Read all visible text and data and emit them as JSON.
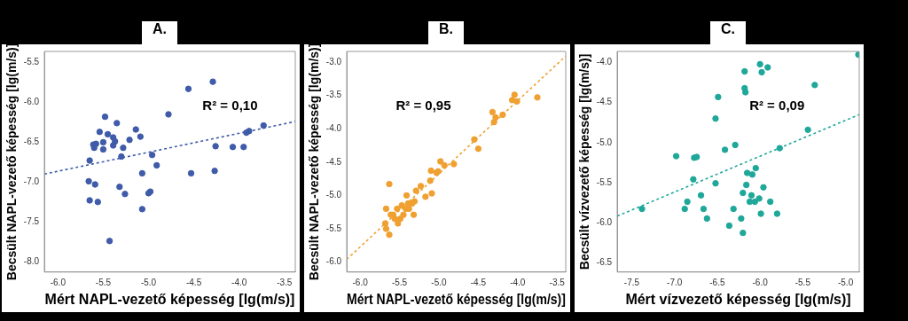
{
  "chart_data": [
    {
      "type": "scatter",
      "title": "A.",
      "xlabel": "Mért NAPL-vezető képesség [lg(m/s)]",
      "ylabel": "Becsült NAPL-vezető képesség [lg(m/s)]",
      "xlim": [
        -6.15,
        -3.38
      ],
      "ylim": [
        -8.13,
        -5.36
      ],
      "xticks": [
        {
          "value": -6,
          "label": "-6.0"
        },
        -5.5,
        {
          "value": -5,
          "label": "-5.0"
        },
        -4.5,
        {
          "value": -4,
          "label": "-4.0"
        },
        -3.5
      ],
      "yticks": [
        -5.5,
        {
          "value": -6,
          "label": "-6.0"
        },
        -6.5,
        {
          "value": -7,
          "label": "-7.0"
        },
        -7.5,
        {
          "value": -8,
          "label": "-8.0"
        }
      ],
      "grid": false,
      "legend": false,
      "series": [
        {
          "marker": "circle",
          "color": "#3f5ba9",
          "x": [
            -4.29,
            -4.56,
            -4.78,
            -3.73,
            -3.89,
            -3.92,
            -4.26,
            -4.07,
            -3.95,
            -4.27,
            -4.53,
            -5.48,
            -5.35,
            -5.14,
            -5.54,
            -5.45,
            -5.39,
            -5.37,
            -5.39,
            -5.21,
            -5.09,
            -5.5,
            -5.58,
            -5.61,
            -5.6,
            -5.5,
            -5.28,
            -5.3,
            -4.96,
            -4.91,
            -5.65,
            -5.07,
            -5.66,
            -5.59,
            -5.32,
            -5.26,
            -4.98,
            -5.0,
            -5.65,
            -5.56,
            -5.07,
            -5.43
          ],
          "values": [
            -5.74,
            -5.83,
            -6.15,
            -6.29,
            -6.36,
            -6.38,
            -6.55,
            -6.56,
            -6.56,
            -6.86,
            -6.89,
            -6.18,
            -6.26,
            -6.34,
            -6.37,
            -6.4,
            -6.44,
            -6.49,
            -6.54,
            -6.47,
            -6.43,
            -6.5,
            -6.52,
            -6.53,
            -6.57,
            -6.59,
            -6.57,
            -6.68,
            -6.66,
            -6.79,
            -6.73,
            -6.89,
            -6.99,
            -7.03,
            -7.06,
            -7.15,
            -7.12,
            -7.14,
            -7.23,
            -7.25,
            -7.34,
            -7.74
          ]
        },
        {
          "type": "line",
          "marker": "none",
          "line_style": "dashed",
          "color": "#3f5ba9",
          "x": [
            -6.15,
            -3.38
          ],
          "values": [
            -6.9,
            -6.24
          ]
        }
      ],
      "annotations": [
        "R² = 0,10"
      ]
    },
    {
      "type": "scatter",
      "title": "B.",
      "xlabel": "Mért NAPL-vezető képesség [lg(m/s)]",
      "ylabel": "Becsült NAPL-vezető képesség [lg(m/s)]",
      "xlim": [
        -6.17,
        -3.39
      ],
      "ylim": [
        -6.15,
        -2.84
      ],
      "xticks": [
        {
          "value": -6,
          "label": "-6.0"
        },
        -5.5,
        {
          "value": -5,
          "label": "-5.0"
        },
        -4.5,
        {
          "value": -4,
          "label": "-4.0"
        },
        -3.5
      ],
      "yticks": [
        {
          "value": -3,
          "label": "-3.0"
        },
        -3.5,
        {
          "value": -4,
          "label": "-4.0"
        },
        -4.5,
        {
          "value": -5,
          "label": "-5.0"
        },
        -5.5,
        {
          "value": -6,
          "label": "-6.0"
        }
      ],
      "grid": false,
      "legend": false,
      "series": [
        {
          "marker": "circle",
          "color": "#f0a030",
          "x": [
            -3.75,
            -4.04,
            -4.07,
            -4.01,
            -4.32,
            -4.28,
            -4.19,
            -4.3,
            -4.55,
            -4.5,
            -4.98,
            -4.81,
            -4.93,
            -5.01,
            -5.1,
            -5.03,
            -5.11,
            -5.63,
            -5.23,
            -5.29,
            -5.41,
            -5.09,
            -5.17,
            -5.31,
            -5.34,
            -5.39,
            -5.47,
            -5.67,
            -5.53,
            -5.42,
            -5.38,
            -5.61,
            -5.58,
            -5.45,
            -5.32,
            -5.56,
            -5.49,
            -5.52,
            -5.68,
            -5.67,
            -5.63
          ],
          "values": [
            -3.53,
            -3.49,
            -3.57,
            -3.59,
            -3.75,
            -3.83,
            -3.79,
            -3.9,
            -4.16,
            -4.3,
            -4.49,
            -4.53,
            -4.55,
            -4.64,
            -4.63,
            -4.66,
            -4.78,
            -4.83,
            -4.86,
            -4.93,
            -5.0,
            -4.97,
            -5.02,
            -5.09,
            -5.12,
            -5.12,
            -5.15,
            -5.2,
            -5.2,
            -5.2,
            -5.2,
            -5.29,
            -5.29,
            -5.29,
            -5.29,
            -5.35,
            -5.35,
            -5.42,
            -5.42,
            -5.5,
            -5.59
          ]
        },
        {
          "type": "line",
          "marker": "none",
          "line_style": "dashed",
          "color": "#f0a030",
          "x": [
            -6.17,
            -3.39
          ],
          "values": [
            -5.96,
            -2.91
          ]
        }
      ],
      "annotations": [
        "R² = 0,95"
      ]
    },
    {
      "type": "scatter",
      "title": "C.",
      "xlabel": "Mért vízvezető képesség [lg(m/s)]",
      "ylabel": "Becsült vízvezető képesség [lg(m/s)]",
      "xlim": [
        -7.67,
        -4.84
      ],
      "ylim": [
        -6.62,
        -3.86
      ],
      "xticks": [
        -7.5,
        {
          "value": -7,
          "label": "-7.0"
        },
        -6.5,
        {
          "value": -6,
          "label": "-6.0"
        },
        -5.5,
        {
          "value": -5,
          "label": "-5.0"
        }
      ],
      "yticks": [
        {
          "value": -4,
          "label": "-4.0"
        },
        -4.5,
        {
          "value": -5,
          "label": "-5.0"
        },
        -5.5,
        {
          "value": -6,
          "label": "-6.0"
        },
        -6.5
      ],
      "grid": false,
      "legend": false,
      "series": [
        {
          "marker": "circle",
          "color": "#1fa89a",
          "x": [
            -6.0,
            -5.91,
            -5.98,
            -6.18,
            -6.18,
            -6.17,
            -5.36,
            -6.49,
            -6.52,
            -5.44,
            -6.29,
            -6.41,
            -5.77,
            -6.98,
            -6.77,
            -6.74,
            -6.15,
            -6.05,
            -6.09,
            -6.78,
            -6.52,
            -6.16,
            -5.96,
            -6.2,
            -6.69,
            -6.1,
            -6.01,
            -6.85,
            -6.12,
            -6.06,
            -5.88,
            -6.88,
            -6.31,
            -6.66,
            -7.38,
            -5.99,
            -5.8,
            -6.62,
            -6.22,
            -6.36,
            -6.2,
            -4.85
          ],
          "values": [
            -4.02,
            -4.06,
            -4.12,
            -4.11,
            -4.32,
            -4.37,
            -4.28,
            -4.43,
            -4.7,
            -4.84,
            -5.03,
            -5.09,
            -5.07,
            -5.17,
            -5.19,
            -5.18,
            -5.38,
            -5.32,
            -5.4,
            -5.46,
            -5.51,
            -5.53,
            -5.56,
            -5.63,
            -5.66,
            -5.66,
            -5.7,
            -5.74,
            -5.74,
            -5.74,
            -5.74,
            -5.83,
            -5.83,
            -5.83,
            -5.83,
            -5.89,
            -5.89,
            -5.95,
            -5.95,
            -6.04,
            -6.13,
            -3.9
          ]
        },
        {
          "type": "line",
          "marker": "none",
          "line_style": "dashed",
          "color": "#1fa89a",
          "x": [
            -7.67,
            -4.84
          ],
          "values": [
            -5.92,
            -4.65
          ]
        }
      ],
      "annotations": [
        "R² = 0,09"
      ]
    }
  ]
}
